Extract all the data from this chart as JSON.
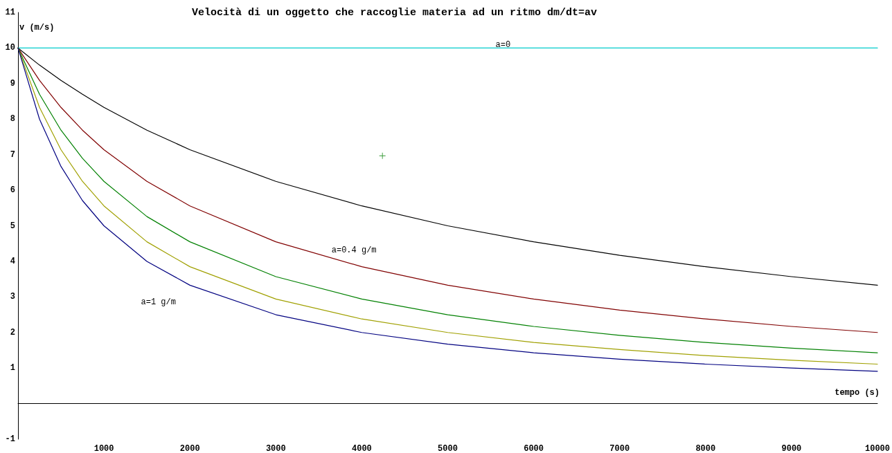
{
  "chart_data": {
    "type": "line",
    "title": "Velocità di un oggetto che raccoglie materia ad un ritmo dm/dt=av",
    "xlabel": "tempo (s)",
    "ylabel": "v (m/s)",
    "xlim": [
      0,
      10000
    ],
    "xticks": [
      1000,
      2000,
      3000,
      4000,
      5000,
      6000,
      7000,
      8000,
      9000,
      10000
    ],
    "ylim": [
      -1,
      11
    ],
    "yticks": [
      -1,
      1,
      2,
      3,
      4,
      5,
      6,
      7,
      8,
      9,
      10,
      11
    ],
    "grid": false,
    "marker": "none",
    "line_style": "solid",
    "x": [
      0,
      250,
      500,
      750,
      1000,
      1500,
      2000,
      3000,
      4000,
      5000,
      6000,
      7000,
      8000,
      9000,
      10000
    ],
    "series": [
      {
        "color": "#00cccc",
        "x": [
          0,
          10000
        ],
        "values": [
          10,
          10
        ]
      },
      {
        "color": "#000000",
        "values": [
          10,
          9.52,
          9.09,
          8.7,
          8.33,
          7.69,
          7.14,
          6.25,
          5.56,
          5.0,
          4.55,
          4.17,
          3.85,
          3.57,
          3.33
        ]
      },
      {
        "color": "#800000",
        "values": [
          10,
          9.09,
          8.33,
          7.69,
          7.14,
          6.25,
          5.56,
          4.55,
          3.85,
          3.33,
          2.94,
          2.63,
          2.38,
          2.17,
          2.0
        ]
      },
      {
        "color": "#008000",
        "values": [
          10,
          8.7,
          7.69,
          6.9,
          6.25,
          5.26,
          4.55,
          3.57,
          2.94,
          2.5,
          2.17,
          1.92,
          1.72,
          1.56,
          1.43
        ]
      },
      {
        "color": "#a0a000",
        "values": [
          10,
          8.33,
          7.14,
          6.25,
          5.56,
          4.55,
          3.85,
          2.94,
          2.38,
          2.0,
          1.72,
          1.52,
          1.35,
          1.22,
          1.11
        ]
      },
      {
        "color": "#000080",
        "values": [
          10,
          8.0,
          6.67,
          5.71,
          5.0,
          4.0,
          3.33,
          2.5,
          2.0,
          1.67,
          1.43,
          1.25,
          1.11,
          1.0,
          0.91
        ]
      },
      {
        "type": "scatter",
        "marker": "cross",
        "color": "#008000",
        "x": [
          4240
        ],
        "values": [
          6.97
        ]
      }
    ],
    "annotations": [
      "a=0",
      "a=0.4 g/m",
      "a=1 g/m"
    ]
  }
}
